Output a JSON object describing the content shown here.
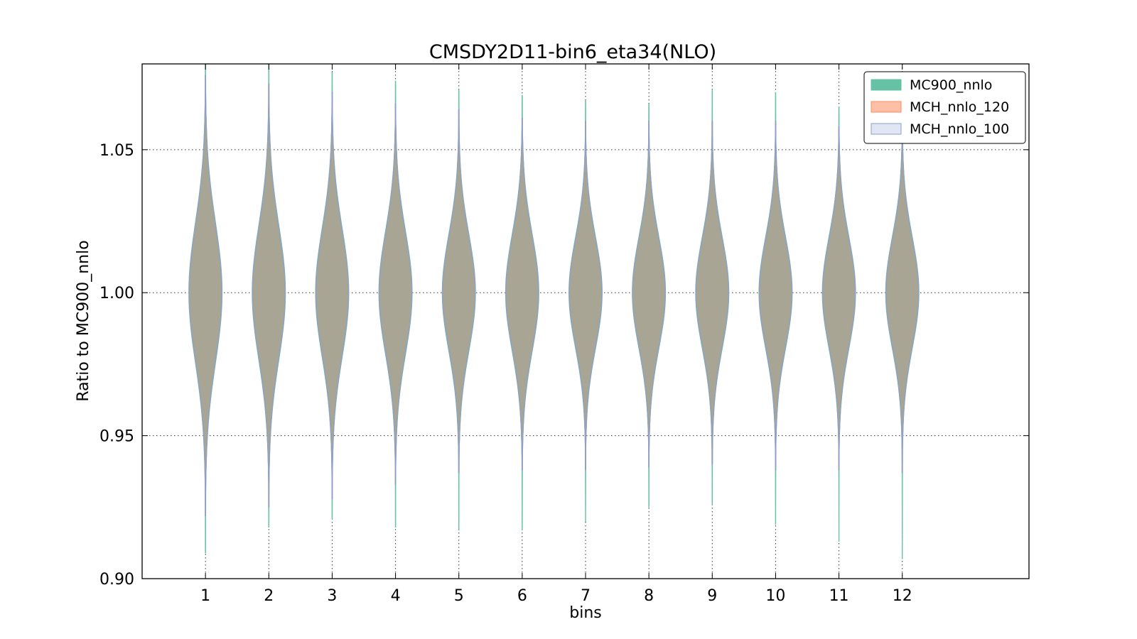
{
  "chart_data": {
    "type": "violin",
    "title": "CMSDY2D11-bin6_eta34(NLO)",
    "xlabel": "bins",
    "ylabel": "Ratio to MC900_nnlo",
    "categories": [
      "1",
      "2",
      "3",
      "4",
      "5",
      "6",
      "7",
      "8",
      "9",
      "10",
      "11",
      "12"
    ],
    "ylim": [
      0.9,
      1.08
    ],
    "yticks": [
      0.9,
      0.95,
      1.0,
      1.05
    ],
    "ytick_labels": [
      "0.90",
      "0.95",
      "1.00",
      "1.05"
    ],
    "xlim": [
      0,
      14
    ],
    "grid": true,
    "legend_position": "top-right",
    "series": [
      {
        "name": "MC900_nnlo",
        "color": "#66c2a5",
        "edge_color": "#66c2a5",
        "min": [
          0.909,
          0.918,
          0.921,
          0.918,
          0.917,
          0.917,
          0.92,
          0.925,
          0.926,
          0.919,
          0.913,
          0.907
        ],
        "max": [
          1.08,
          1.08,
          1.077,
          1.074,
          1.071,
          1.069,
          1.067,
          1.066,
          1.071,
          1.07,
          1.065,
          1.063
        ]
      },
      {
        "name": "MCH_nnlo_120",
        "color": "#fc8d62",
        "edge_color": "#fc8d62",
        "min": [
          0.922,
          0.925,
          0.928,
          0.933,
          0.937,
          0.938,
          0.938,
          0.939,
          0.94,
          0.938,
          0.938,
          0.937
        ],
        "max": [
          1.076,
          1.073,
          1.07,
          1.066,
          1.064,
          1.061,
          1.06,
          1.06,
          1.06,
          1.06,
          1.058,
          1.057
        ]
      },
      {
        "name": "MCH_nnlo_100",
        "color": "#8da0cb",
        "edge_color": "#8da0cb",
        "min": [
          0.922,
          0.925,
          0.928,
          0.933,
          0.937,
          0.938,
          0.938,
          0.939,
          0.94,
          0.938,
          0.938,
          0.937
        ],
        "max": [
          1.076,
          1.073,
          1.07,
          1.066,
          1.064,
          1.061,
          1.06,
          1.06,
          1.06,
          1.06,
          1.058,
          1.057
        ]
      }
    ],
    "center": [
      1.0,
      1.0,
      1.0,
      1.0,
      1.0,
      1.0,
      1.0,
      1.0,
      1.0,
      1.0,
      1.0,
      1.0
    ],
    "spread": [
      0.024,
      0.023,
      0.022,
      0.021,
      0.02,
      0.02,
      0.019,
      0.019,
      0.019,
      0.019,
      0.019,
      0.019
    ],
    "overlap_fill_color": "#a6a595"
  }
}
